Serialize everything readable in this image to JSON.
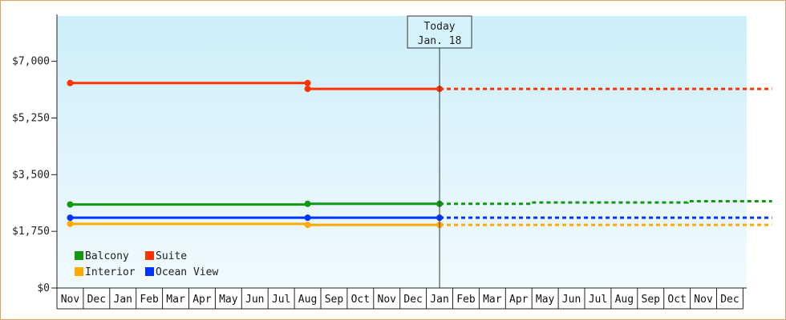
{
  "chart_data": {
    "type": "line",
    "y_ticks": [
      "$0",
      "$1,750",
      "$3,500",
      "$5,250",
      "$7,000"
    ],
    "ylim": [
      0,
      8400
    ],
    "x_categories": [
      "Nov",
      "Dec",
      "Jan",
      "Feb",
      "Mar",
      "Apr",
      "May",
      "Jun",
      "Jul",
      "Aug",
      "Sep",
      "Oct",
      "Nov",
      "Dec",
      "Jan",
      "Feb",
      "Mar",
      "Apr",
      "May",
      "Jun",
      "Jul",
      "Aug",
      "Sep",
      "Oct",
      "Nov",
      "Dec"
    ],
    "today": {
      "line1": "Today",
      "line2": "Jan. 18",
      "x_index": 14
    },
    "grid": false,
    "legend_position": "bottom-left",
    "series": [
      {
        "name": "Balcony",
        "color": "#119911",
        "actual": [
          [
            0,
            2580
          ],
          [
            9,
            2580
          ],
          [
            9,
            2600
          ],
          [
            14,
            2600
          ]
        ],
        "projected": [
          [
            14,
            2600
          ],
          [
            17.5,
            2600
          ],
          [
            17.5,
            2640
          ],
          [
            23.4,
            2640
          ],
          [
            23.4,
            2680
          ],
          [
            26.6,
            2680
          ]
        ],
        "markers": [
          [
            0,
            2580
          ],
          [
            9,
            2600
          ],
          [
            14,
            2600
          ]
        ]
      },
      {
        "name": "Suite",
        "color": "#ff3300",
        "actual": [
          [
            0,
            6330
          ],
          [
            9,
            6330
          ],
          [
            9,
            6150
          ],
          [
            14,
            6150
          ]
        ],
        "projected": [
          [
            14,
            6150
          ],
          [
            26.6,
            6150
          ]
        ],
        "markers": [
          [
            0,
            6330
          ],
          [
            9,
            6330
          ],
          [
            9,
            6150
          ],
          [
            14,
            6150
          ]
        ]
      },
      {
        "name": "Interior",
        "color": "#ffaa00",
        "actual": [
          [
            0,
            1980
          ],
          [
            9,
            1980
          ],
          [
            9,
            1950
          ],
          [
            14,
            1950
          ]
        ],
        "projected": [
          [
            14,
            1950
          ],
          [
            26.6,
            1950
          ]
        ],
        "markers": [
          [
            0,
            1980
          ],
          [
            9,
            1950
          ],
          [
            14,
            1950
          ]
        ]
      },
      {
        "name": "Ocean View",
        "color": "#0033ff",
        "actual": [
          [
            0,
            2170
          ],
          [
            14,
            2170
          ]
        ],
        "projected": [
          [
            14,
            2170
          ],
          [
            26.6,
            2170
          ]
        ],
        "markers": [
          [
            0,
            2170
          ],
          [
            9,
            2170
          ],
          [
            14,
            2170
          ]
        ]
      }
    ]
  }
}
